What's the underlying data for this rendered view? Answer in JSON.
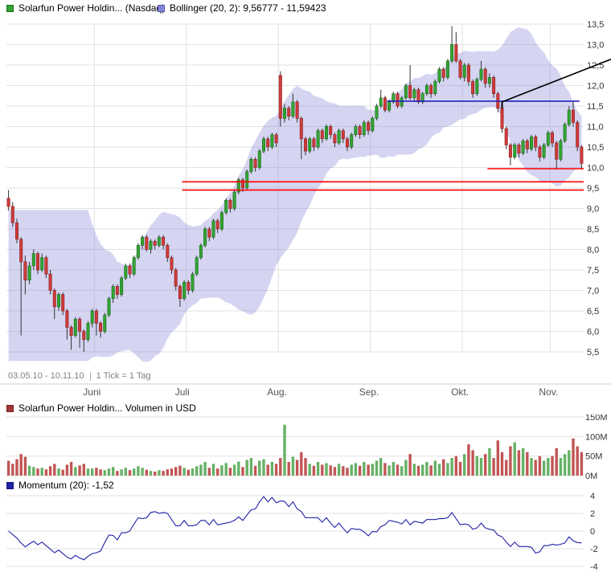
{
  "header": {
    "price_legend": "Solarfun Power Holdin... (Nasdaq)",
    "bollinger_legend": "Bollinger (20, 2): 9,56777 - 11,59423"
  },
  "footer": {
    "date_range": "03.05.10 - 10.11.10",
    "tick_info": "1 Tick = 1 Tag"
  },
  "volume_pane": {
    "legend": "Solarfun Power Holdin... Volumen in USD"
  },
  "momentum_pane": {
    "legend": "Momentum (20): -1,52"
  },
  "colors": {
    "candle_up": "#33a333",
    "candle_up_border": "#1b6e1b",
    "candle_down": "#cf3b3b",
    "candle_down_border": "#8e2020",
    "wick": "#333333",
    "band": "rgba(125,125,215,0.32)",
    "band_swatch": "#8585db",
    "band_border": "#5858aa",
    "grid": "#e2e2e2",
    "axis_text": "#333333",
    "month_text": "#555555",
    "range_text": "#808080",
    "support": "#ff0000",
    "resistance": "#2121bb",
    "trend": "#000000",
    "vol_up": "#66b166",
    "vol_down": "#c25555",
    "vol_legend": "#a03535",
    "momentum": "#2121a8"
  },
  "chart_data": {
    "type": "candlestick",
    "title": "Solarfun Power Holdin... (Nasdaq)",
    "period": "03.05.10 - 10.11.10",
    "tick": "1 Tick = 1 Tag",
    "y_axis": {
      "min": 5.5,
      "max": 13.5,
      "step": 0.5,
      "tick_labels": [
        "13,5",
        "13,0",
        "12,5",
        "12,0",
        "11,5",
        "11,0",
        "10,5",
        "10,0",
        "9,5",
        "9,0",
        "8,5",
        "8,0",
        "7,5",
        "7,0",
        "6,5",
        "6,0",
        "5,5"
      ]
    },
    "x_axis": {
      "months": [
        {
          "label": "Juni",
          "start_index": 21
        },
        {
          "label": "Juli",
          "start_index": 43
        },
        {
          "label": "Aug.",
          "start_index": 65
        },
        {
          "label": "Sep.",
          "start_index": 87
        },
        {
          "label": "Okt.",
          "start_index": 109
        },
        {
          "label": "Nov.",
          "start_index": 130
        }
      ],
      "total_points": 138
    },
    "bollinger": {
      "period": 20,
      "deviation": 2,
      "current_lower": 9.56777,
      "current_upper": 11.59423
    },
    "candles": [
      [
        9.25,
        9.45,
        8.95,
        9.05
      ],
      [
        9.05,
        9.15,
        8.55,
        8.65
      ],
      [
        8.65,
        8.75,
        8.15,
        8.25
      ],
      [
        8.25,
        8.3,
        5.9,
        7.7
      ],
      [
        7.7,
        7.85,
        6.9,
        7.25
      ],
      [
        7.25,
        7.7,
        7.15,
        7.6
      ],
      [
        7.6,
        8.0,
        7.5,
        7.9
      ],
      [
        7.9,
        7.95,
        7.4,
        7.5
      ],
      [
        7.5,
        7.9,
        7.45,
        7.8
      ],
      [
        7.8,
        7.85,
        7.3,
        7.4
      ],
      [
        7.4,
        7.5,
        6.9,
        7.0
      ],
      [
        7.0,
        7.05,
        6.3,
        6.6
      ],
      [
        6.6,
        6.95,
        6.5,
        6.9
      ],
      [
        6.9,
        6.95,
        6.4,
        6.5
      ],
      [
        6.5,
        6.55,
        5.8,
        6.1
      ],
      [
        6.1,
        6.15,
        5.55,
        5.9
      ],
      [
        5.9,
        6.35,
        5.85,
        6.3
      ],
      [
        6.3,
        6.35,
        5.6,
        6.0
      ],
      [
        6.0,
        6.05,
        5.5,
        5.8
      ],
      [
        5.8,
        6.25,
        5.75,
        6.2
      ],
      [
        6.2,
        6.55,
        6.1,
        6.5
      ],
      [
        6.5,
        6.55,
        5.9,
        6.2
      ],
      [
        6.2,
        6.25,
        5.85,
        6.0
      ],
      [
        6.0,
        6.45,
        5.95,
        6.4
      ],
      [
        6.4,
        6.85,
        6.35,
        6.8
      ],
      [
        6.8,
        7.15,
        6.7,
        7.1
      ],
      [
        7.1,
        7.15,
        6.8,
        6.9
      ],
      [
        6.9,
        7.35,
        6.85,
        7.3
      ],
      [
        7.3,
        7.65,
        7.25,
        7.6
      ],
      [
        7.6,
        7.65,
        7.3,
        7.4
      ],
      [
        7.4,
        7.85,
        7.35,
        7.8
      ],
      [
        7.8,
        8.15,
        7.75,
        8.1
      ],
      [
        8.1,
        8.35,
        8.0,
        8.3
      ],
      [
        8.3,
        8.35,
        7.95,
        8.0
      ],
      [
        8.0,
        8.25,
        7.9,
        8.2
      ],
      [
        8.2,
        8.25,
        8.0,
        8.1
      ],
      [
        8.1,
        8.35,
        8.05,
        8.3
      ],
      [
        8.3,
        8.35,
        8.0,
        8.1
      ],
      [
        8.1,
        8.15,
        7.7,
        7.8
      ],
      [
        7.8,
        7.85,
        7.4,
        7.5
      ],
      [
        7.5,
        7.55,
        7.0,
        7.1
      ],
      [
        7.1,
        7.15,
        6.6,
        6.8
      ],
      [
        6.8,
        7.25,
        6.75,
        7.2
      ],
      [
        7.2,
        7.25,
        6.9,
        7.0
      ],
      [
        7.0,
        7.45,
        6.95,
        7.4
      ],
      [
        7.4,
        7.85,
        7.35,
        7.8
      ],
      [
        7.8,
        8.15,
        7.75,
        8.1
      ],
      [
        8.1,
        8.55,
        8.05,
        8.5
      ],
      [
        8.5,
        8.55,
        8.2,
        8.3
      ],
      [
        8.3,
        8.75,
        8.25,
        8.7
      ],
      [
        8.7,
        8.75,
        8.4,
        8.5
      ],
      [
        8.5,
        8.95,
        8.45,
        8.9
      ],
      [
        8.9,
        9.25,
        8.85,
        9.2
      ],
      [
        9.2,
        9.25,
        8.9,
        9.0
      ],
      [
        9.0,
        9.45,
        8.95,
        9.4
      ],
      [
        9.4,
        9.75,
        9.35,
        9.7
      ],
      [
        9.7,
        9.75,
        9.4,
        9.5
      ],
      [
        9.5,
        9.95,
        9.45,
        9.9
      ],
      [
        9.9,
        10.25,
        9.85,
        10.2
      ],
      [
        10.2,
        10.25,
        9.9,
        10.0
      ],
      [
        10.0,
        10.45,
        9.95,
        10.4
      ],
      [
        10.4,
        10.75,
        10.35,
        10.7
      ],
      [
        10.7,
        10.75,
        10.4,
        10.5
      ],
      [
        10.5,
        10.85,
        10.45,
        10.8
      ],
      [
        10.8,
        10.85,
        10.5,
        10.6
      ],
      [
        12.25,
        12.35,
        11.0,
        11.2
      ],
      [
        11.2,
        11.55,
        11.1,
        11.45
      ],
      [
        11.45,
        11.5,
        11.15,
        11.25
      ],
      [
        11.25,
        11.8,
        11.2,
        11.6
      ],
      [
        11.6,
        11.65,
        11.1,
        11.2
      ],
      [
        11.2,
        11.25,
        10.2,
        10.7
      ],
      [
        10.7,
        10.75,
        10.3,
        10.4
      ],
      [
        10.4,
        10.75,
        10.35,
        10.7
      ],
      [
        10.7,
        10.75,
        10.4,
        10.5
      ],
      [
        10.5,
        10.95,
        10.45,
        10.9
      ],
      [
        10.9,
        10.95,
        10.6,
        10.7
      ],
      [
        10.7,
        11.05,
        10.65,
        11.0
      ],
      [
        11.0,
        11.05,
        10.7,
        10.8
      ],
      [
        10.8,
        10.85,
        10.5,
        10.6
      ],
      [
        10.6,
        10.95,
        10.55,
        10.9
      ],
      [
        10.9,
        10.95,
        10.6,
        10.7
      ],
      [
        10.7,
        10.75,
        10.4,
        10.5
      ],
      [
        10.5,
        10.85,
        10.45,
        10.8
      ],
      [
        10.8,
        11.05,
        10.75,
        11.0
      ],
      [
        11.0,
        11.05,
        10.7,
        10.8
      ],
      [
        10.8,
        11.15,
        10.75,
        11.1
      ],
      [
        11.1,
        11.15,
        10.8,
        10.9
      ],
      [
        10.9,
        11.25,
        10.85,
        11.2
      ],
      [
        11.2,
        11.55,
        11.15,
        11.5
      ],
      [
        11.5,
        11.9,
        11.45,
        11.7
      ],
      [
        11.7,
        11.75,
        11.35,
        11.4
      ],
      [
        11.4,
        11.65,
        11.35,
        11.6
      ],
      [
        11.6,
        11.85,
        11.55,
        11.8
      ],
      [
        11.8,
        11.85,
        11.45,
        11.5
      ],
      [
        11.5,
        11.75,
        11.45,
        11.7
      ],
      [
        11.7,
        12.05,
        11.65,
        12.0
      ],
      [
        12.0,
        12.5,
        11.65,
        11.7
      ],
      [
        11.7,
        11.95,
        11.6,
        11.9
      ],
      [
        11.9,
        11.95,
        11.55,
        11.6
      ],
      [
        11.6,
        11.85,
        11.55,
        11.8
      ],
      [
        11.8,
        12.05,
        11.75,
        12.0
      ],
      [
        12.0,
        12.05,
        11.7,
        11.8
      ],
      [
        11.8,
        12.15,
        11.75,
        12.1
      ],
      [
        12.1,
        12.45,
        12.05,
        12.4
      ],
      [
        12.4,
        12.45,
        12.1,
        12.2
      ],
      [
        12.2,
        12.65,
        12.15,
        12.6
      ],
      [
        12.6,
        13.45,
        12.55,
        13.0
      ],
      [
        13.0,
        13.3,
        12.55,
        12.6
      ],
      [
        12.6,
        12.65,
        12.15,
        12.2
      ],
      [
        12.2,
        12.55,
        12.1,
        12.5
      ],
      [
        12.5,
        12.55,
        12.0,
        12.1
      ],
      [
        12.1,
        12.15,
        11.7,
        11.8
      ],
      [
        11.8,
        12.2,
        11.75,
        12.15
      ],
      [
        12.15,
        12.6,
        12.1,
        12.4
      ],
      [
        12.4,
        12.45,
        11.95,
        12.05
      ],
      [
        12.05,
        12.3,
        11.95,
        12.2
      ],
      [
        12.2,
        12.25,
        11.7,
        11.8
      ],
      [
        11.8,
        11.85,
        11.35,
        11.45
      ],
      [
        11.45,
        11.5,
        10.85,
        10.95
      ],
      [
        10.95,
        11.0,
        10.45,
        10.55
      ],
      [
        10.55,
        10.6,
        10.05,
        10.25
      ],
      [
        10.25,
        10.6,
        10.2,
        10.55
      ],
      [
        10.55,
        10.6,
        10.25,
        10.35
      ],
      [
        10.35,
        10.7,
        10.3,
        10.65
      ],
      [
        10.65,
        10.7,
        10.35,
        10.45
      ],
      [
        10.45,
        10.8,
        10.4,
        10.75
      ],
      [
        10.75,
        10.8,
        10.4,
        10.5
      ],
      [
        10.5,
        10.55,
        10.15,
        10.25
      ],
      [
        10.25,
        10.6,
        10.2,
        10.55
      ],
      [
        10.55,
        10.9,
        10.5,
        10.85
      ],
      [
        10.85,
        10.9,
        10.5,
        10.6
      ],
      [
        10.6,
        10.65,
        9.95,
        10.2
      ],
      [
        10.2,
        10.7,
        10.15,
        10.65
      ],
      [
        10.65,
        11.1,
        10.6,
        11.05
      ],
      [
        11.05,
        11.5,
        11.0,
        11.4
      ],
      [
        11.4,
        11.6,
        11.0,
        11.1
      ],
      [
        11.1,
        11.15,
        10.4,
        10.5
      ],
      [
        10.5,
        10.55,
        9.95,
        10.1
      ]
    ],
    "volume": {
      "unit": "Volumen in USD (Millionen)",
      "axis_ticks": [
        150,
        100,
        50,
        0
      ],
      "tick_labels": [
        "150M",
        "100M",
        "50M",
        "0M"
      ],
      "values": [
        38,
        30,
        42,
        55,
        48,
        25,
        22,
        18,
        20,
        16,
        24,
        30,
        18,
        15,
        28,
        35,
        22,
        26,
        30,
        18,
        18,
        20,
        16,
        14,
        18,
        22,
        12,
        16,
        20,
        14,
        18,
        24,
        20,
        15,
        12,
        10,
        14,
        12,
        16,
        18,
        22,
        25,
        20,
        15,
        18,
        24,
        28,
        35,
        20,
        30,
        18,
        26,
        32,
        20,
        28,
        36,
        22,
        40,
        45,
        25,
        38,
        42,
        28,
        35,
        30,
        45,
        130,
        35,
        48,
        40,
        60,
        45,
        30,
        25,
        35,
        28,
        32,
        26,
        22,
        30,
        24,
        20,
        28,
        32,
        25,
        35,
        28,
        30,
        38,
        45,
        32,
        26,
        35,
        28,
        24,
        40,
        55,
        30,
        25,
        28,
        35,
        26,
        38,
        30,
        42,
        32,
        45,
        50,
        35,
        55,
        80,
        65,
        50,
        45,
        55,
        70,
        45,
        90,
        60,
        40,
        75,
        85,
        65,
        70,
        60,
        45,
        40,
        50,
        38,
        45,
        50,
        70,
        45,
        55,
        65,
        95,
        75,
        60
      ]
    },
    "momentum": {
      "period": 20,
      "current": -1.52,
      "axis_ticks": [
        4,
        2,
        0,
        -2,
        -4
      ]
    },
    "overlays": {
      "support_lines": [
        {
          "price": 9.97,
          "from_index": 115,
          "to_index": 138
        },
        {
          "price": 9.65,
          "from_index": 42,
          "to_index": 138
        },
        {
          "price": 9.45,
          "from_index": 42,
          "to_index": 138
        }
      ],
      "resistance_line": {
        "price": 11.62,
        "from_index": 91,
        "to_index": 137
      },
      "trend_line": {
        "from_index": 118,
        "from_price": 11.6,
        "to_index": 146,
        "to_price": 12.7
      }
    }
  }
}
